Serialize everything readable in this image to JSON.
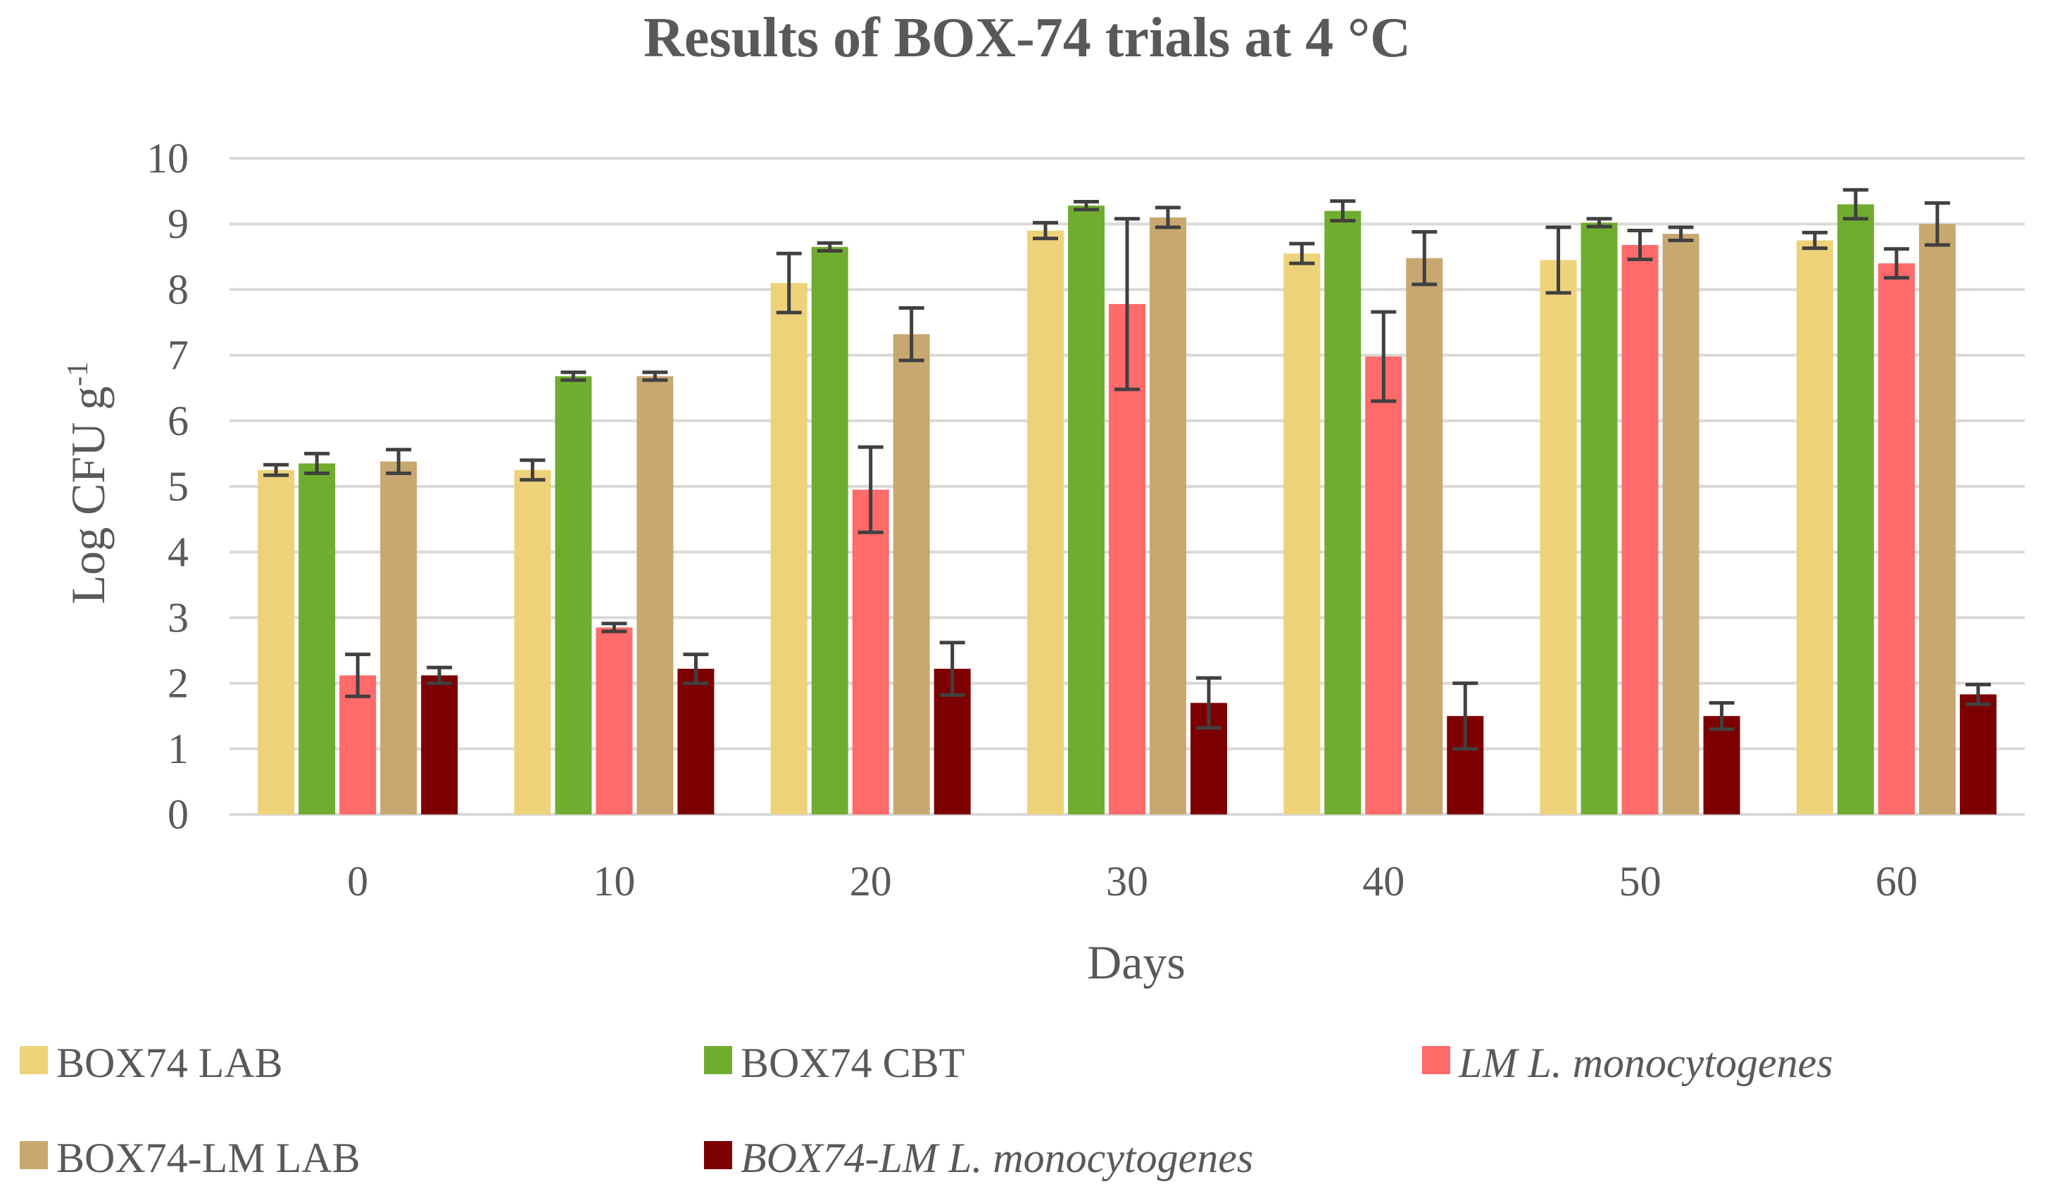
{
  "chart_data": {
    "type": "bar",
    "title": "Results of BOX-74 trials at 4 °C",
    "xlabel": "Days",
    "ylabel": "Log CFU g",
    "ylabel_superscript": "-1",
    "ylim": [
      0,
      10
    ],
    "yticks": [
      "0",
      "1",
      "2",
      "3",
      "4",
      "5",
      "6",
      "7",
      "8",
      "9",
      "10"
    ],
    "categories": [
      "0",
      "10",
      "20",
      "30",
      "40",
      "50",
      "60"
    ],
    "series": [
      {
        "name": "BOX74 LAB",
        "italic": false,
        "color": "#EDD27A",
        "values": [
          5.25,
          5.25,
          8.1,
          8.9,
          8.55,
          8.45,
          8.75
        ],
        "errors": [
          0.08,
          0.15,
          0.45,
          0.12,
          0.15,
          0.5,
          0.12
        ]
      },
      {
        "name": "BOX74 CBT",
        "italic": false,
        "color": "#70AD2F",
        "values": [
          5.35,
          6.68,
          8.65,
          9.28,
          9.2,
          9.02,
          9.3
        ],
        "errors": [
          0.15,
          0.06,
          0.06,
          0.06,
          0.15,
          0.06,
          0.22
        ]
      },
      {
        "name": "LM L. monocytogenes",
        "italic": true,
        "color": "#FF6A6A",
        "values": [
          2.12,
          2.85,
          4.95,
          7.78,
          6.98,
          8.68,
          8.4
        ],
        "errors": [
          0.32,
          0.06,
          0.65,
          1.3,
          0.68,
          0.22,
          0.22
        ]
      },
      {
        "name": "BOX74-LM LAB",
        "italic": false,
        "color": "#C8A870",
        "values": [
          5.38,
          6.68,
          7.32,
          9.1,
          8.48,
          8.85,
          9.0
        ],
        "errors": [
          0.18,
          0.06,
          0.4,
          0.15,
          0.4,
          0.1,
          0.32
        ]
      },
      {
        "name": "BOX74-LM L. monocytogenes",
        "italic": true,
        "color": "#7D0000",
        "values": [
          2.12,
          2.22,
          2.22,
          1.7,
          1.5,
          1.5,
          1.83
        ],
        "errors": [
          0.12,
          0.22,
          0.4,
          0.38,
          0.5,
          0.2,
          0.15
        ]
      }
    ],
    "legend_position": "bottom",
    "grid": true
  }
}
